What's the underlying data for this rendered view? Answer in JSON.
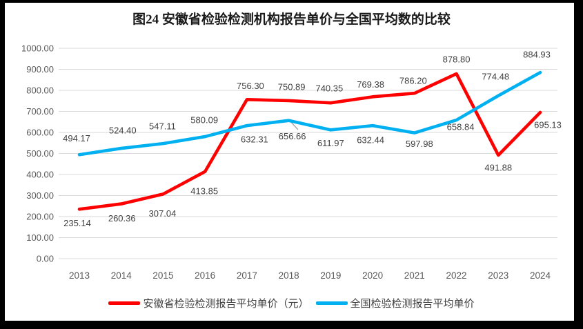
{
  "title": "图24 安徽省检验检测机构报告单价与全国平均数的比较",
  "legend": {
    "items": [
      {
        "label": "安徽省检验检测报告平均单价（元）",
        "color": "#FF0000"
      },
      {
        "label": "全国检验检测报告平均单价",
        "color": "#00B0F0"
      }
    ]
  },
  "chart_data": {
    "type": "line",
    "title": "图24 安徽省检验检测机构报告单价与全国平均数的比较",
    "categories": [
      "2013",
      "2014",
      "2015",
      "2016",
      "2017",
      "2018",
      "2019",
      "2020",
      "2021",
      "2022",
      "2023",
      "2024"
    ],
    "series": [
      {
        "name": "安徽省检验检测报告平均单价（元）",
        "color": "#FF0000",
        "values": [
          235.14,
          260.36,
          307.04,
          413.85,
          756.3,
          750.89,
          740.35,
          769.38,
          786.2,
          878.8,
          491.88,
          695.13
        ],
        "labels": [
          "235.14",
          "260.36",
          "307.04",
          "413.85",
          "756.30",
          "750.89",
          "740.35",
          "769.38",
          "786.20",
          "878.80",
          "491.88",
          "695.13"
        ],
        "label_offsets": [
          [
            -3,
            20
          ],
          [
            1,
            21
          ],
          [
            -1,
            28
          ],
          [
            -1,
            28
          ],
          [
            5,
            -20
          ],
          [
            4,
            -20
          ],
          [
            -2,
            -21
          ],
          [
            -3,
            -18
          ],
          [
            -2,
            -18
          ],
          [
            0,
            -21
          ],
          [
            0,
            18
          ],
          [
            11,
            18
          ]
        ]
      },
      {
        "name": "全国检验检测报告平均单价",
        "color": "#00B0F0",
        "values": [
          494.17,
          524.4,
          547.11,
          580.09,
          632.31,
          656.66,
          611.97,
          632.44,
          597.98,
          658.84,
          774.48,
          884.93
        ],
        "labels": [
          "494.17",
          "524.40",
          "547.11",
          "580.09",
          "632.31",
          "656.66",
          "611.97",
          "632.44",
          "597.98",
          "658.84",
          "774.48",
          "884.93"
        ],
        "label_offsets": [
          [
            -4,
            -24
          ],
          [
            2,
            -26
          ],
          [
            -1,
            -25
          ],
          [
            -1,
            -24
          ],
          [
            11,
            20
          ],
          [
            5,
            23
          ],
          [
            0,
            19
          ],
          [
            -3,
            21
          ],
          [
            7,
            16
          ],
          [
            6,
            10
          ],
          [
            -4,
            -28
          ],
          [
            -5,
            -26
          ]
        ],
        "leader_line": {
          "index": 5,
          "from": [
            420,
            175
          ],
          "to": [
            432,
            188
          ]
        }
      }
    ],
    "xlabel": "",
    "ylabel": "",
    "ylim": [
      0,
      1000
    ],
    "y_tick_step": 100,
    "y_tick_labels": [
      "0.00",
      "100.00",
      "200.00",
      "300.00",
      "400.00",
      "500.00",
      "600.00",
      "700.00",
      "800.00",
      "900.00",
      "1000.00"
    ],
    "grid": true,
    "legend_position": "bottom",
    "styles": {
      "gridline_color": "#D9D9D9",
      "tick_label_color": "#595959",
      "data_label_color": "#404040",
      "leader_line_color": "#A6A6A6"
    }
  }
}
